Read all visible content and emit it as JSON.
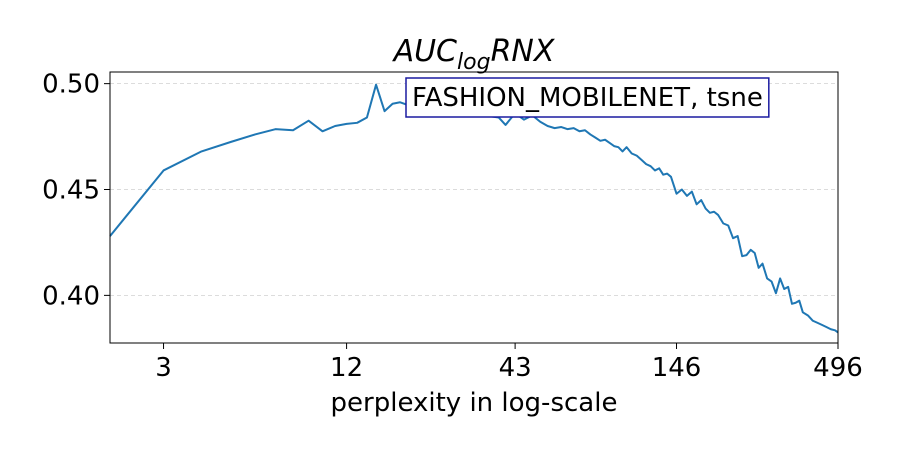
{
  "chart_data": {
    "type": "line",
    "title": {
      "main": "AUC",
      "sub": "log",
      "suffix": "RNX"
    },
    "xlabel": "perplexity in log-scale",
    "ylabel": "",
    "xscale": "log",
    "xlim": [
      2,
      496
    ],
    "ylim": [
      0.3775,
      0.5055
    ],
    "xticks": [
      3,
      12,
      43,
      146,
      496
    ],
    "xtick_labels": [
      "3",
      "12",
      "43",
      "146",
      "496"
    ],
    "yticks": [
      0.4,
      0.45,
      0.5
    ],
    "ytick_labels": [
      "0.40",
      "0.45",
      "0.50"
    ],
    "grid": "horizontal-dashed",
    "legend_box": {
      "text": "FASHION_MOBILENET, tsne",
      "placement": "top-right",
      "border_color": "#1a1aa0"
    },
    "line_color": "#1f77b4",
    "series": [
      {
        "x": [
          2,
          3,
          4,
          5,
          6,
          7,
          8,
          9,
          10,
          11,
          12,
          13,
          14,
          15,
          16,
          17,
          18,
          19,
          20,
          21,
          22,
          24,
          26,
          28,
          30,
          32,
          34,
          36,
          38,
          40,
          43,
          46,
          49,
          52,
          55,
          58,
          61,
          64,
          67,
          70,
          73,
          76,
          79,
          82,
          85,
          88,
          91,
          94,
          97,
          100,
          104,
          108,
          112,
          116,
          120,
          124,
          128,
          132,
          136,
          140,
          146,
          152,
          158,
          164,
          170,
          176,
          182,
          188,
          194,
          200,
          208,
          216,
          224,
          232,
          240,
          248,
          256,
          264,
          272,
          280,
          290,
          300,
          310,
          320,
          330,
          340,
          350,
          360,
          370,
          380,
          395,
          410,
          425,
          440,
          455,
          470,
          485,
          496
        ],
        "y": [
          0.428,
          0.459,
          0.468,
          0.4725,
          0.476,
          0.4785,
          0.478,
          0.4825,
          0.4775,
          0.48,
          0.481,
          0.4815,
          0.484,
          0.4995,
          0.487,
          0.4905,
          0.4912,
          0.49,
          0.4895,
          0.4905,
          0.488,
          0.49,
          0.489,
          0.488,
          0.487,
          0.486,
          0.485,
          0.4845,
          0.484,
          0.4805,
          0.486,
          0.483,
          0.485,
          0.482,
          0.48,
          0.479,
          0.4795,
          0.4785,
          0.479,
          0.4775,
          0.478,
          0.476,
          0.4745,
          0.473,
          0.4735,
          0.472,
          0.4705,
          0.47,
          0.468,
          0.47,
          0.467,
          0.466,
          0.464,
          0.462,
          0.461,
          0.459,
          0.46,
          0.457,
          0.4575,
          0.456,
          0.448,
          0.45,
          0.447,
          0.449,
          0.443,
          0.445,
          0.441,
          0.439,
          0.4395,
          0.438,
          0.434,
          0.433,
          0.427,
          0.428,
          0.4185,
          0.419,
          0.4215,
          0.42,
          0.413,
          0.415,
          0.408,
          0.4065,
          0.401,
          0.408,
          0.403,
          0.404,
          0.396,
          0.3965,
          0.3975,
          0.392,
          0.3905,
          0.388,
          0.387,
          0.386,
          0.385,
          0.384,
          0.3835,
          0.3825
        ]
      }
    ]
  }
}
